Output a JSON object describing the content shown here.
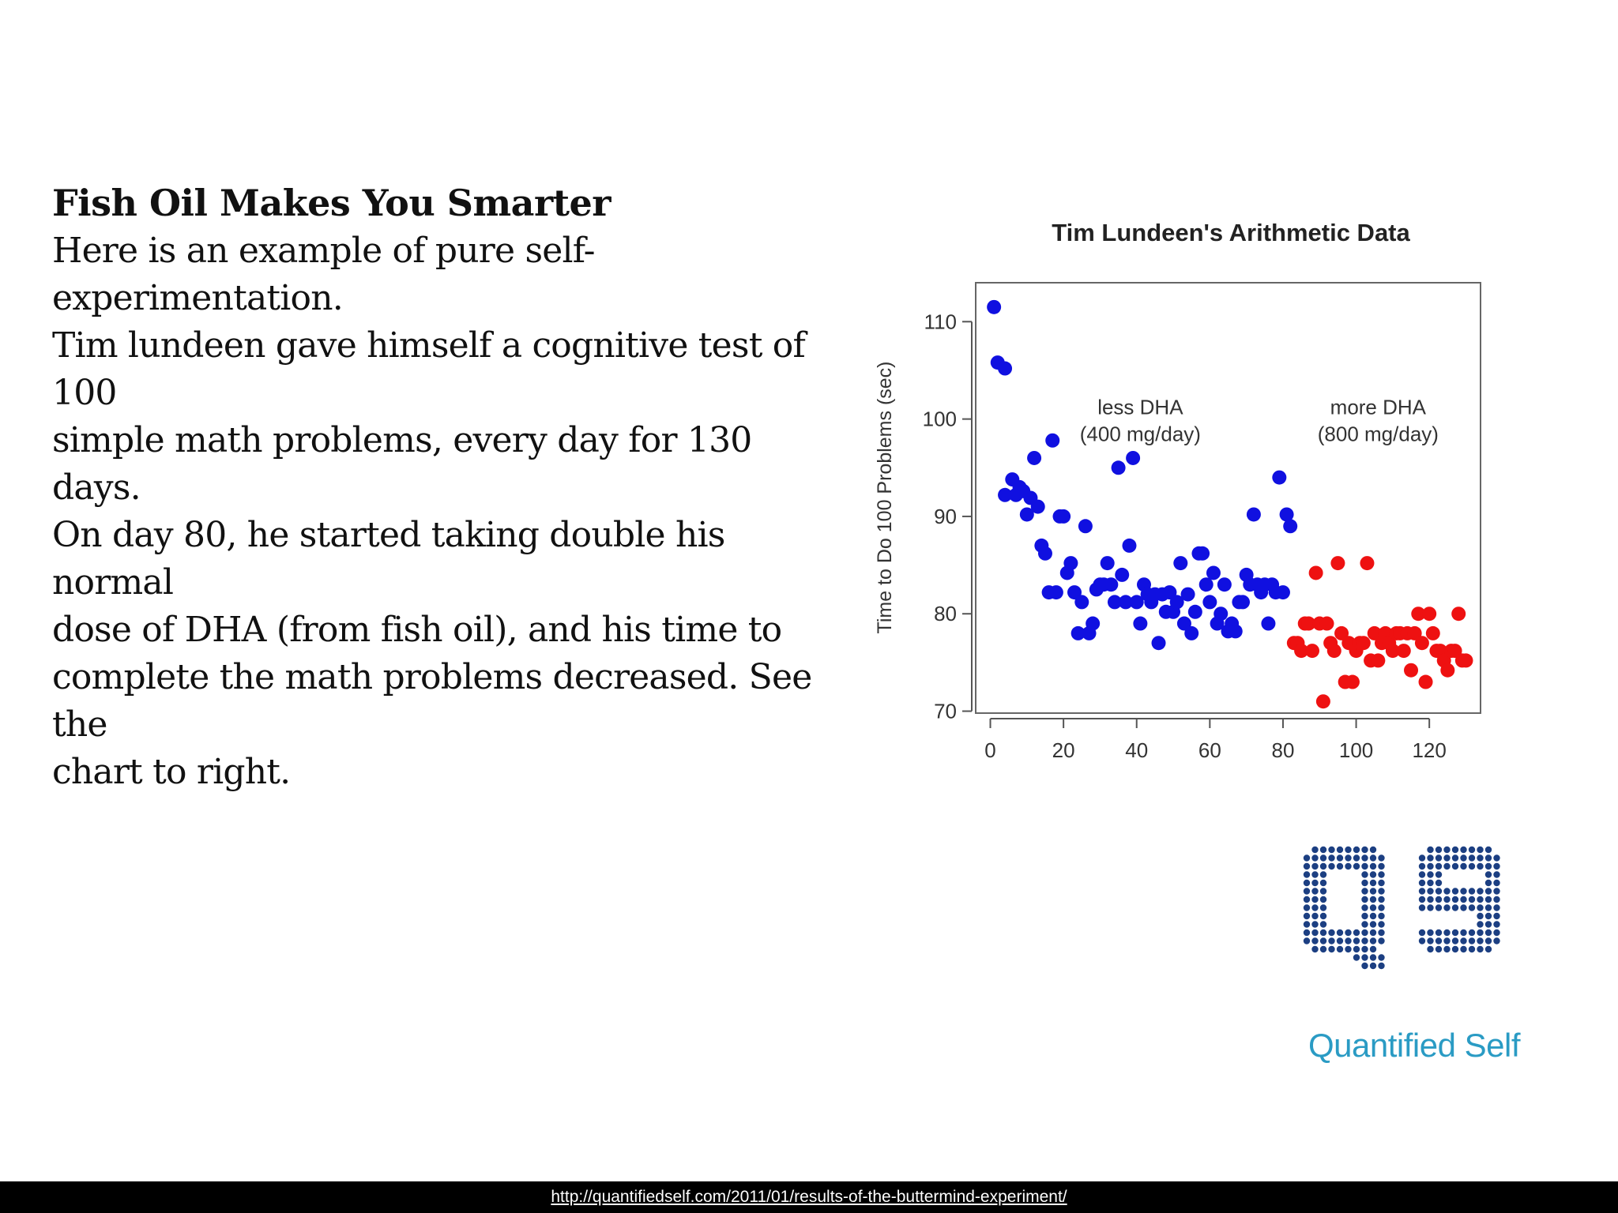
{
  "slide": {
    "heading": "Fish Oil Makes You Smarter",
    "body_lines": [
      "Here is an example of pure self-experimentation.",
      "Tim lundeen gave himself a cognitive test of 100",
      "simple math problems, every day for 130 days.",
      "On day 80, he started taking double his normal",
      "dose of DHA (from fish oil), and his time to",
      "complete the math problems decreased. See the",
      "chart to right."
    ],
    "footer_link": "http://quantifiedself.com/2011/01/results-of-the-buttermind-experiment/"
  },
  "logo": {
    "letters": "QS",
    "wordmark": "Quantified Self",
    "dot_color": "#1c3f82",
    "text_color": "#2a9bc4"
  },
  "chart_data": {
    "type": "scatter",
    "title": "Tim Lundeen's Arithmetic Data",
    "xlabel": "",
    "ylabel": "Time to Do 100 Problems (sec)",
    "xlim": [
      -4,
      134
    ],
    "ylim": [
      69.8,
      114
    ],
    "x_ticks": [
      0,
      20,
      40,
      60,
      80,
      100,
      120
    ],
    "y_ticks": [
      70,
      80,
      90,
      100,
      110
    ],
    "annotations": [
      {
        "lines": [
          "less DHA",
          "(400 mg/day)"
        ],
        "x": 41,
        "y": 100.5
      },
      {
        "lines": [
          "more DHA",
          "(800 mg/day)"
        ],
        "x": 106,
        "y": 100.5
      }
    ],
    "series": [
      {
        "name": "less DHA (400 mg/day)",
        "color": "#1010e0",
        "points": [
          [
            1,
            111.5
          ],
          [
            2,
            105.8
          ],
          [
            4,
            105.2
          ],
          [
            4,
            92.2
          ],
          [
            6,
            93.8
          ],
          [
            7,
            92.2
          ],
          [
            8,
            93.0
          ],
          [
            9,
            92.6
          ],
          [
            10,
            90.2
          ],
          [
            11,
            91.9
          ],
          [
            12,
            96.0
          ],
          [
            13,
            91.0
          ],
          [
            14,
            87.0
          ],
          [
            15,
            86.2
          ],
          [
            16,
            82.2
          ],
          [
            17,
            97.8
          ],
          [
            18,
            82.2
          ],
          [
            19,
            90.0
          ],
          [
            20,
            90.0
          ],
          [
            21,
            84.2
          ],
          [
            22,
            85.2
          ],
          [
            23,
            82.2
          ],
          [
            24,
            78.0
          ],
          [
            25,
            81.2
          ],
          [
            26,
            89.0
          ],
          [
            27,
            78.0
          ],
          [
            28,
            79.0
          ],
          [
            29,
            82.5
          ],
          [
            30,
            83.0
          ],
          [
            31,
            83.0
          ],
          [
            32,
            85.2
          ],
          [
            33,
            83.0
          ],
          [
            34,
            81.2
          ],
          [
            35,
            95.0
          ],
          [
            36,
            84.0
          ],
          [
            37,
            81.2
          ],
          [
            38,
            87.0
          ],
          [
            39,
            96.0
          ],
          [
            40,
            81.2
          ],
          [
            41,
            79.0
          ],
          [
            42,
            83.0
          ],
          [
            43,
            82.0
          ],
          [
            44,
            81.2
          ],
          [
            45,
            82.0
          ],
          [
            46,
            77.0
          ],
          [
            47,
            82.0
          ],
          [
            48,
            80.2
          ],
          [
            49,
            82.2
          ],
          [
            50,
            80.2
          ],
          [
            51,
            81.2
          ],
          [
            52,
            85.2
          ],
          [
            53,
            79.0
          ],
          [
            54,
            82.0
          ],
          [
            55,
            78.0
          ],
          [
            56,
            80.2
          ],
          [
            57,
            86.2
          ],
          [
            58,
            86.2
          ],
          [
            59,
            83.0
          ],
          [
            60,
            81.2
          ],
          [
            61,
            84.2
          ],
          [
            62,
            79.0
          ],
          [
            63,
            80.0
          ],
          [
            64,
            83.0
          ],
          [
            65,
            78.2
          ],
          [
            66,
            79.0
          ],
          [
            67,
            78.2
          ],
          [
            68,
            81.2
          ],
          [
            69,
            81.2
          ],
          [
            70,
            84.0
          ],
          [
            71,
            83.0
          ],
          [
            72,
            90.2
          ],
          [
            73,
            83.0
          ],
          [
            74,
            82.2
          ],
          [
            75,
            83.0
          ],
          [
            76,
            79.0
          ],
          [
            77,
            83.0
          ],
          [
            78,
            82.2
          ],
          [
            79,
            94.0
          ],
          [
            80,
            82.2
          ],
          [
            81,
            90.2
          ],
          [
            82,
            89.0
          ]
        ]
      },
      {
        "name": "more DHA (800 mg/day)",
        "color": "#ee1111",
        "points": [
          [
            83,
            77.0
          ],
          [
            84,
            77.0
          ],
          [
            85,
            76.2
          ],
          [
            86,
            79.0
          ],
          [
            87,
            79.0
          ],
          [
            88,
            76.2
          ],
          [
            89,
            84.2
          ],
          [
            90,
            79.0
          ],
          [
            91,
            71.0
          ],
          [
            92,
            79.0
          ],
          [
            93,
            77.0
          ],
          [
            94,
            76.2
          ],
          [
            95,
            85.2
          ],
          [
            96,
            78.0
          ],
          [
            97,
            73.0
          ],
          [
            98,
            77.0
          ],
          [
            99,
            73.0
          ],
          [
            100,
            76.2
          ],
          [
            101,
            77.0
          ],
          [
            102,
            77.0
          ],
          [
            103,
            85.2
          ],
          [
            104,
            75.2
          ],
          [
            105,
            78.0
          ],
          [
            106,
            75.2
          ],
          [
            107,
            77.0
          ],
          [
            108,
            78.0
          ],
          [
            109,
            77.0
          ],
          [
            110,
            76.2
          ],
          [
            111,
            78.0
          ],
          [
            112,
            78.0
          ],
          [
            113,
            76.2
          ],
          [
            114,
            78.0
          ],
          [
            115,
            74.2
          ],
          [
            116,
            78.0
          ],
          [
            117,
            80.0
          ],
          [
            118,
            77.0
          ],
          [
            119,
            73.0
          ],
          [
            120,
            80.0
          ],
          [
            121,
            78.0
          ],
          [
            122,
            76.2
          ],
          [
            123,
            76.2
          ],
          [
            124,
            75.2
          ],
          [
            125,
            74.2
          ],
          [
            126,
            76.2
          ],
          [
            127,
            76.2
          ],
          [
            128,
            80.0
          ],
          [
            129,
            75.2
          ],
          [
            130,
            75.2
          ]
        ]
      }
    ]
  }
}
